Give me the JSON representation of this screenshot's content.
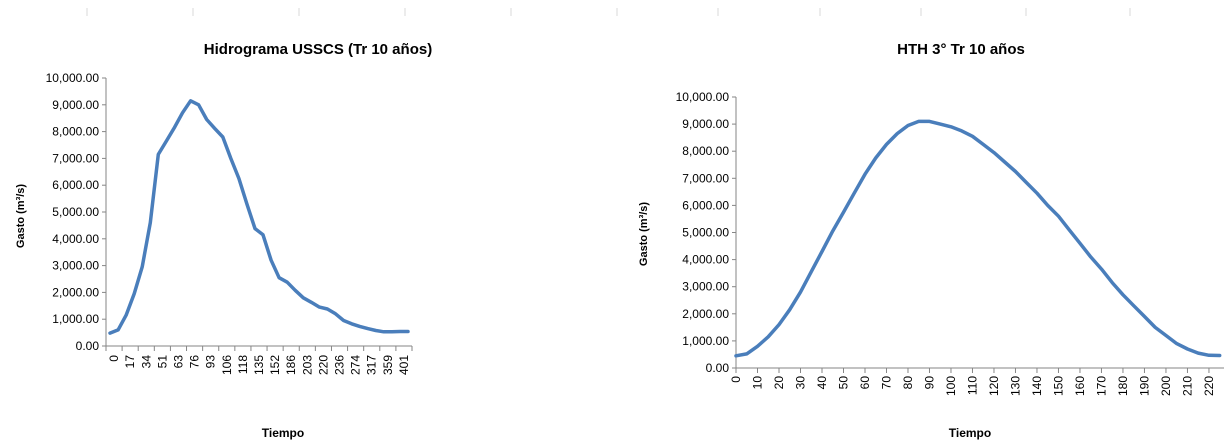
{
  "charts": {
    "series_color": "#4a7ebb",
    "chart_data": [
      {
        "type": "line",
        "title": "Hidrograma USSCS (Tr 10 años)",
        "xlabel": "Tiempo",
        "ylabel": "Gasto  (m³/s)",
        "ylim": [
          0,
          10000
        ],
        "y_ticks": [
          "0.00",
          "1,000.00",
          "2,000.00",
          "3,000.00",
          "4,000.00",
          "5,000.00",
          "6,000.00",
          "7,000.00",
          "8,000.00",
          "9,000.00",
          "10,000.00"
        ],
        "x_tick_labels": [
          "0",
          "17",
          "34",
          "51",
          "63",
          "76",
          "93",
          "106",
          "118",
          "135",
          "152",
          "186",
          "203",
          "220",
          "236",
          "274",
          "317",
          "359",
          "401"
        ],
        "grid": false,
        "x": [
          0,
          8,
          17,
          25,
          34,
          42,
          51,
          59,
          63,
          68,
          76,
          84,
          93,
          101,
          106,
          110,
          118,
          127,
          135,
          144,
          152,
          169,
          186,
          195,
          203,
          211,
          220,
          228,
          236,
          253,
          274,
          296,
          317,
          338,
          359,
          380,
          401,
          422
        ],
        "series": [
          {
            "values": [
              480,
              600,
              1150,
              1950,
              2950,
              4600,
              7150,
              7650,
              8150,
              8700,
              9150,
              9000,
              8450,
              8120,
              7800,
              7000,
              6250,
              5300,
              4380,
              4150,
              3200,
              2550,
              2380,
              2080,
              1800,
              1630,
              1450,
              1380,
              1200,
              950,
              830,
              730,
              650,
              580,
              530,
              530,
              540,
              540
            ]
          }
        ]
      },
      {
        "type": "line",
        "title": "HTH 3° Tr 10 años",
        "xlabel": "Tiempo",
        "ylabel": "Gasto  (m³/s)",
        "ylim": [
          0,
          10000
        ],
        "y_ticks": [
          "0.00",
          "1,000.00",
          "2,000.00",
          "3,000.00",
          "4,000.00",
          "5,000.00",
          "6,000.00",
          "7,000.00",
          "8,000.00",
          "9,000.00",
          "10,000.00"
        ],
        "x_tick_labels": [
          "0",
          "10",
          "20",
          "30",
          "40",
          "50",
          "60",
          "70",
          "80",
          "90",
          "100",
          "110",
          "120",
          "130",
          "140",
          "150",
          "160",
          "170",
          "180",
          "190",
          "200",
          "210",
          "220"
        ],
        "grid": false,
        "x": [
          0,
          5,
          10,
          15,
          20,
          25,
          30,
          35,
          40,
          45,
          50,
          55,
          60,
          65,
          70,
          75,
          80,
          85,
          90,
          95,
          100,
          105,
          110,
          115,
          120,
          125,
          130,
          135,
          140,
          145,
          150,
          155,
          160,
          165,
          170,
          175,
          180,
          185,
          190,
          195,
          200,
          205,
          210,
          215,
          220,
          225
        ],
        "series": [
          {
            "values": [
              450,
              520,
              800,
              1150,
              1600,
              2150,
              2800,
              3550,
              4300,
              5050,
              5750,
              6450,
              7150,
              7750,
              8250,
              8650,
              8950,
              9100,
              9100,
              9000,
              8900,
              8750,
              8550,
              8250,
              7950,
              7600,
              7250,
              6850,
              6450,
              6000,
              5600,
              5100,
              4600,
              4100,
              3650,
              3150,
              2700,
              2300,
              1900,
              1500,
              1200,
              900,
              700,
              550,
              470,
              460
            ]
          }
        ]
      }
    ]
  }
}
